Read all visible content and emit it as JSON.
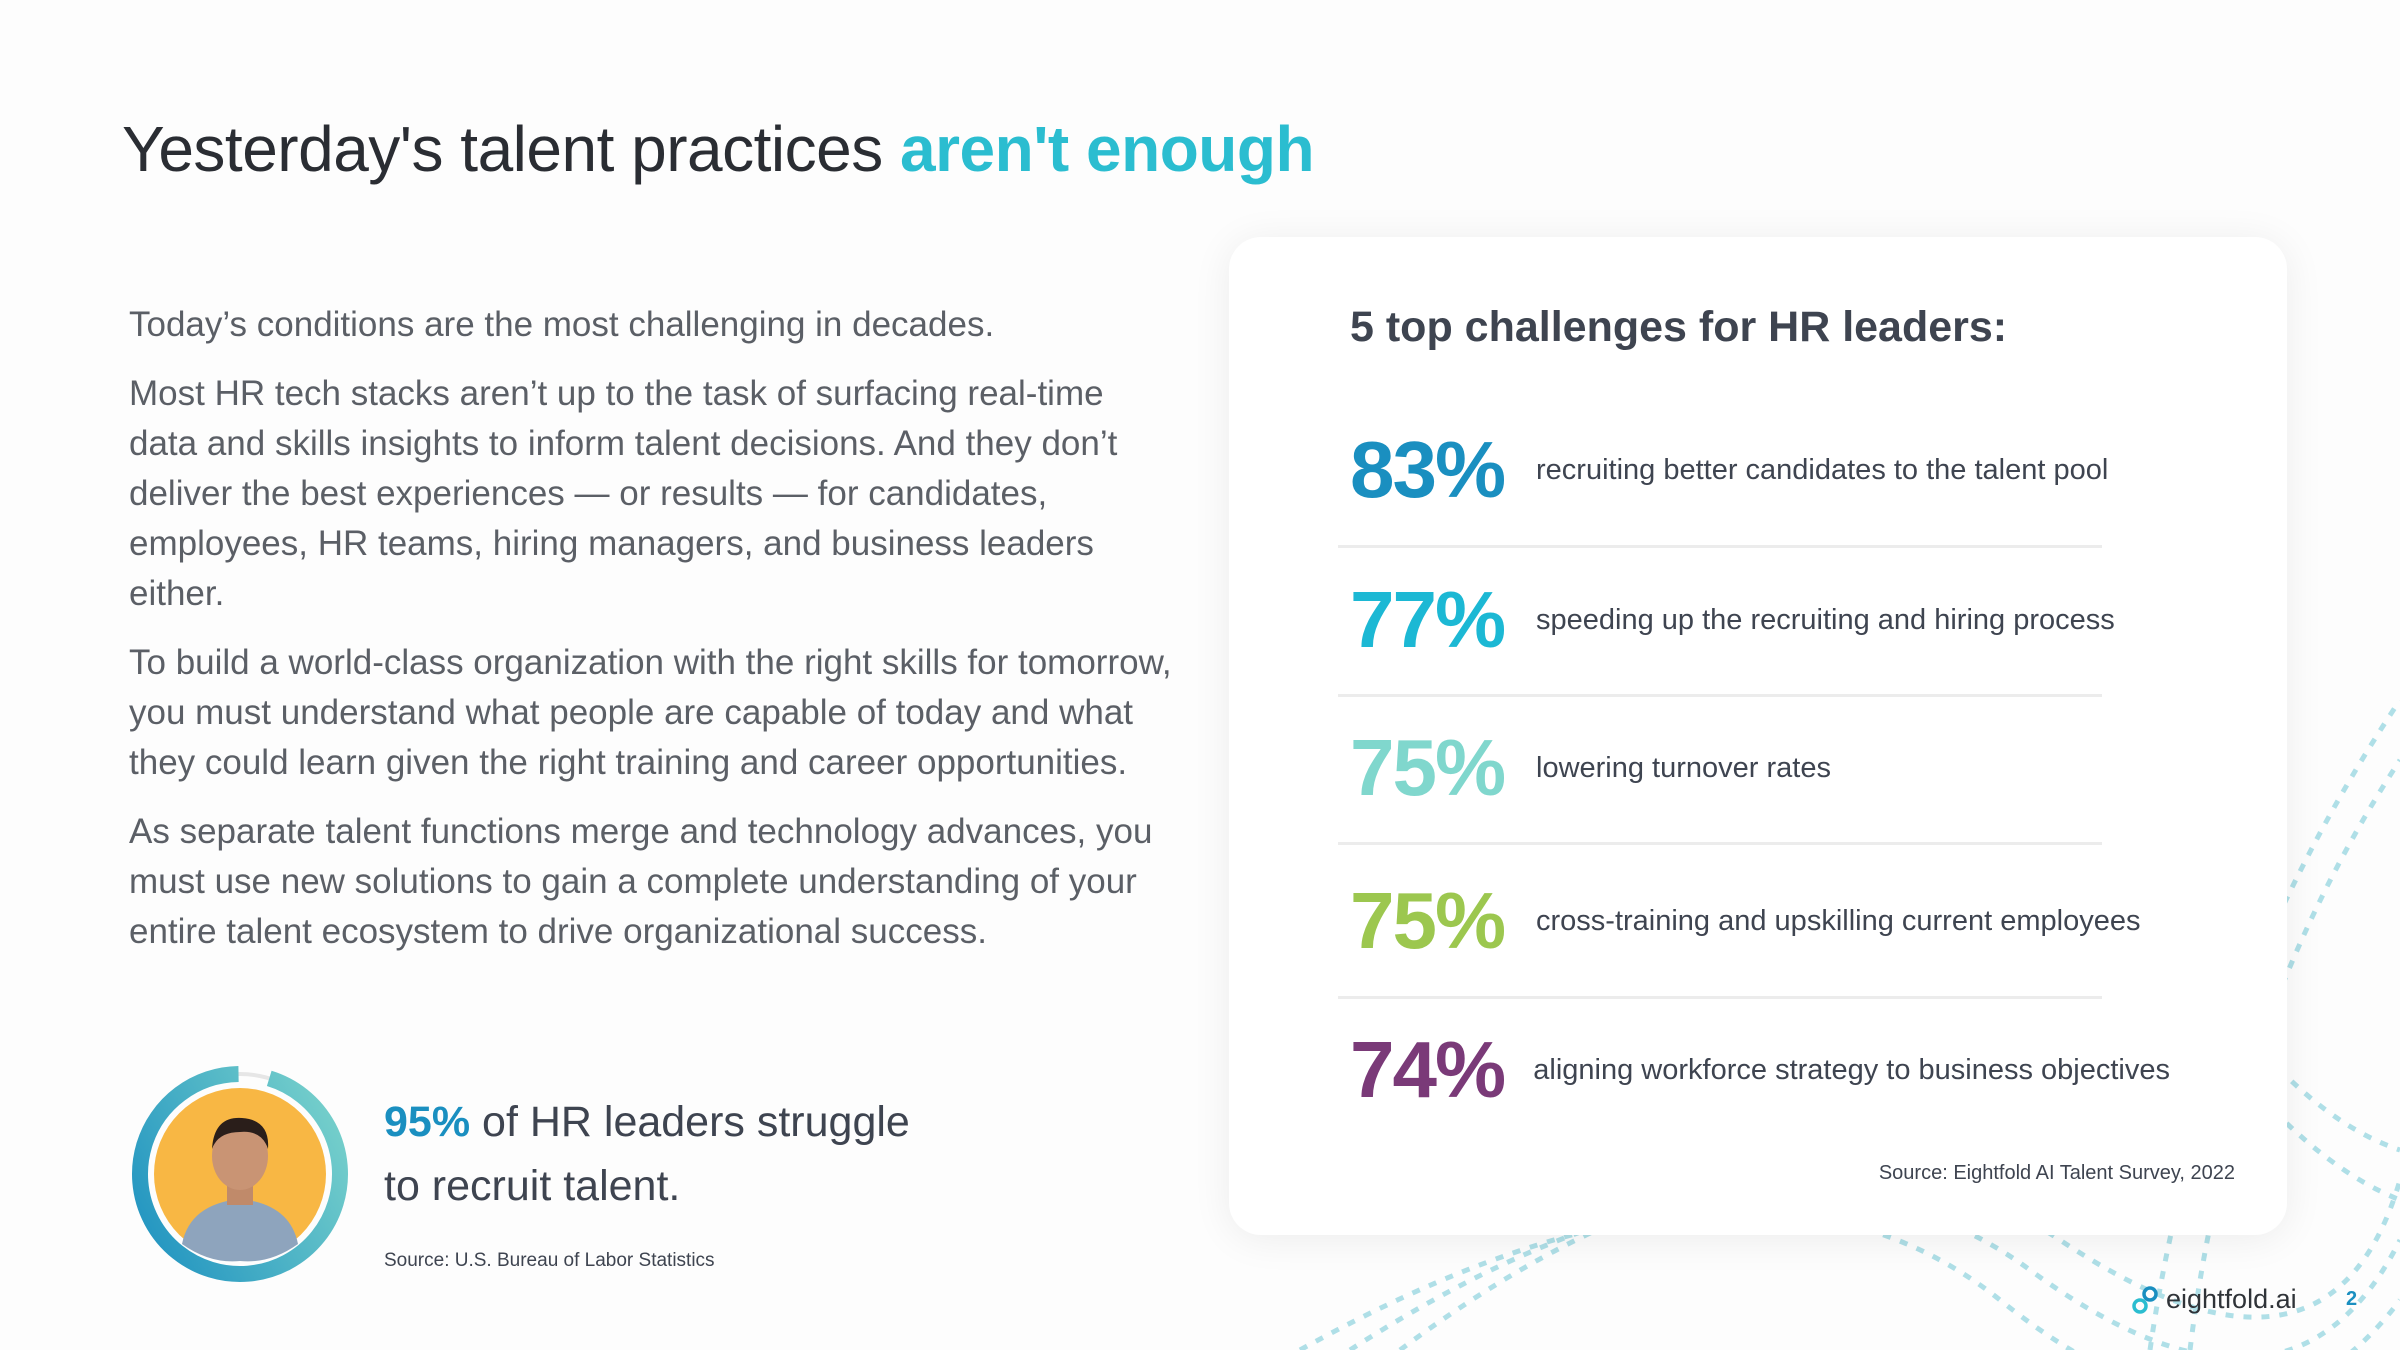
{
  "title": {
    "plain": "Yesterday's talent practices ",
    "accent": "aren't enough",
    "accent_color": "#2bbdd0"
  },
  "intro": [
    "Today’s conditions are the most challenging in decades.",
    "Most HR tech stacks aren’t up to the task of surfacing real-time data and skills insights to inform talent decisions. And they don’t deliver the best experiences — or results — for candidates, employees, HR teams, hiring managers, and business leaders either.",
    "To build a world-class organization with the right skills for tomorrow, you must understand what people are capable of today and what they could learn given the right training and career opportunities.",
    "As separate talent functions merge and technology advances, you must use new solutions to gain a complete understanding of your entire talent ecosystem to drive organizational success."
  ],
  "card": {
    "title": "5 top challenges for HR leaders:",
    "items": [
      {
        "pct": "83%",
        "text": "recruiting better candidates to the talent pool",
        "color": "#1a8fc0"
      },
      {
        "pct": "77%",
        "text": "speeding up the recruiting and hiring process",
        "color": "#1cb8d4"
      },
      {
        "pct": "75%",
        "text": "lowering turnover rates",
        "color": "#80d7cd"
      },
      {
        "pct": "75%",
        "text": "cross-training and upskilling current employees",
        "color": "#9cc74f"
      },
      {
        "pct": "74%",
        "text": "aligning workforce strategy to business objectives",
        "color": "#7a3a78"
      }
    ],
    "source": "Source: Eightfold AI Talent Survey, 2022"
  },
  "stat": {
    "highlight": "95%",
    "line1": " of HR leaders struggle",
    "line2": "to recruit talent.",
    "ring_fill": 0.95,
    "source": "Source: U.S. Bureau of Labor Statistics"
  },
  "footer": {
    "logo": "eightfold.ai",
    "page": "2"
  }
}
